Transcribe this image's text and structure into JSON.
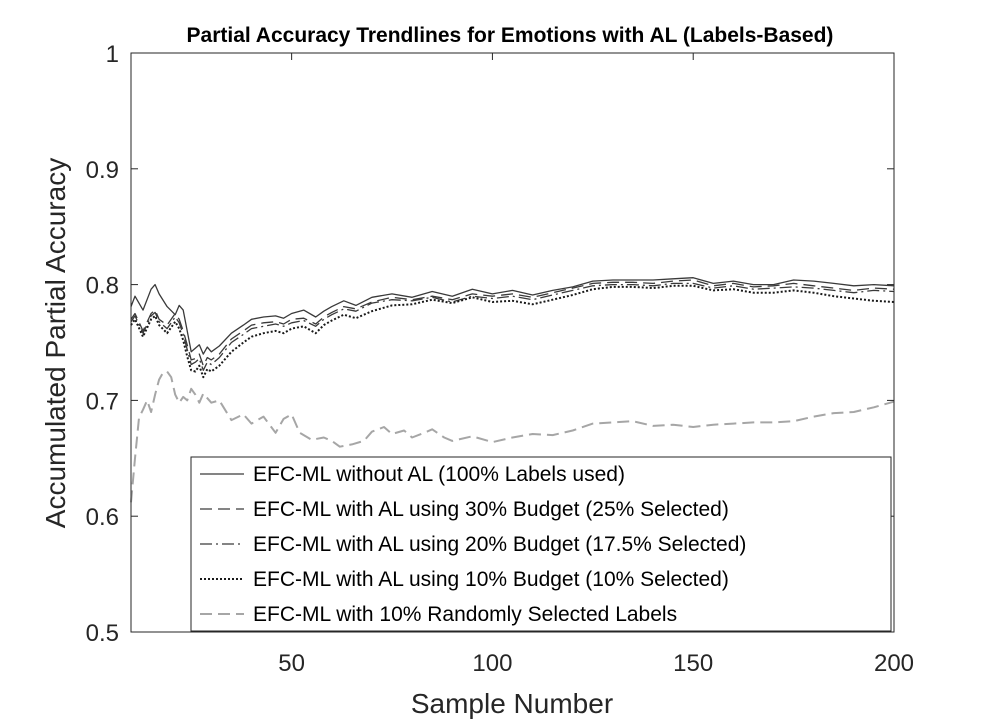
{
  "chart_data": {
    "type": "line",
    "title": "Partial Accuracy Trendlines for Emotions with AL (Labels-Based)",
    "xlabel": "Sample Number",
    "ylabel": "Accumulated Partial Accuracy",
    "xlim": [
      10,
      200
    ],
    "ylim": [
      0.5,
      1
    ],
    "xticks": [
      50,
      100,
      150,
      200
    ],
    "xtick_labels": [
      "50",
      "100",
      "150",
      "200"
    ],
    "yticks": [
      0.5,
      0.6,
      0.7,
      0.8,
      0.9,
      1
    ],
    "ytick_labels": [
      "0.5",
      "0.6",
      "0.7",
      "0.8",
      "0.9",
      "1"
    ],
    "grid": false,
    "legend_position": "bottom-right",
    "series": [
      {
        "name": "EFC-ML without AL (100% Labels used)",
        "line_style": "solid",
        "color": "#3a3a3a",
        "x": [
          10,
          11,
          13,
          15,
          16,
          17,
          19,
          21,
          22,
          23,
          24,
          25,
          26,
          27,
          28,
          29,
          30,
          32,
          35,
          38,
          40,
          43,
          46,
          48,
          50,
          53,
          56,
          58,
          60,
          63,
          66,
          70,
          75,
          80,
          85,
          90,
          95,
          100,
          105,
          110,
          115,
          120,
          125,
          130,
          135,
          140,
          145,
          150,
          155,
          160,
          165,
          170,
          175,
          180,
          185,
          190,
          195,
          200
        ],
        "y": [
          0.781,
          0.79,
          0.778,
          0.796,
          0.8,
          0.792,
          0.781,
          0.774,
          0.782,
          0.778,
          0.76,
          0.742,
          0.745,
          0.748,
          0.74,
          0.746,
          0.742,
          0.747,
          0.758,
          0.765,
          0.77,
          0.772,
          0.773,
          0.771,
          0.775,
          0.778,
          0.772,
          0.777,
          0.781,
          0.786,
          0.782,
          0.789,
          0.792,
          0.789,
          0.794,
          0.79,
          0.796,
          0.792,
          0.795,
          0.791,
          0.795,
          0.798,
          0.803,
          0.804,
          0.804,
          0.804,
          0.805,
          0.806,
          0.801,
          0.803,
          0.8,
          0.8,
          0.804,
          0.803,
          0.801,
          0.799,
          0.8,
          0.799
        ]
      },
      {
        "name": "EFC-ML with AL using 30% Budget (25% Selected)",
        "line_style": "dashed",
        "color": "#3a3a3a",
        "x": [
          10,
          11,
          13,
          15,
          16,
          17,
          19,
          21,
          22,
          23,
          24,
          25,
          26,
          27,
          28,
          29,
          30,
          32,
          35,
          38,
          40,
          43,
          46,
          48,
          50,
          53,
          56,
          58,
          60,
          63,
          66,
          70,
          75,
          80,
          85,
          90,
          95,
          100,
          105,
          110,
          115,
          120,
          125,
          130,
          135,
          140,
          145,
          150,
          155,
          160,
          165,
          170,
          175,
          180,
          185,
          190,
          195,
          200
        ],
        "y": [
          0.77,
          0.775,
          0.76,
          0.775,
          0.778,
          0.77,
          0.765,
          0.775,
          0.77,
          0.76,
          0.748,
          0.735,
          0.736,
          0.74,
          0.73,
          0.737,
          0.735,
          0.74,
          0.753,
          0.76,
          0.765,
          0.767,
          0.768,
          0.766,
          0.77,
          0.771,
          0.766,
          0.772,
          0.776,
          0.781,
          0.779,
          0.785,
          0.789,
          0.787,
          0.79,
          0.787,
          0.792,
          0.79,
          0.792,
          0.789,
          0.793,
          0.797,
          0.801,
          0.802,
          0.802,
          0.801,
          0.803,
          0.804,
          0.799,
          0.801,
          0.798,
          0.799,
          0.801,
          0.799,
          0.797,
          0.795,
          0.797,
          0.796
        ]
      },
      {
        "name": "EFC-ML with AL using 20% Budget (17.5% Selected)",
        "line_style": "dashdot",
        "color": "#3a3a3a",
        "x": [
          10,
          11,
          13,
          15,
          16,
          17,
          19,
          21,
          22,
          23,
          24,
          25,
          26,
          27,
          28,
          29,
          30,
          32,
          35,
          38,
          40,
          43,
          46,
          48,
          50,
          53,
          56,
          58,
          60,
          63,
          66,
          70,
          75,
          80,
          85,
          90,
          95,
          100,
          105,
          110,
          115,
          120,
          125,
          130,
          135,
          140,
          145,
          150,
          155,
          160,
          165,
          170,
          175,
          180,
          185,
          190,
          195,
          200
        ],
        "y": [
          0.768,
          0.773,
          0.758,
          0.773,
          0.776,
          0.768,
          0.762,
          0.772,
          0.767,
          0.757,
          0.744,
          0.731,
          0.733,
          0.736,
          0.726,
          0.733,
          0.731,
          0.737,
          0.75,
          0.757,
          0.762,
          0.764,
          0.766,
          0.764,
          0.767,
          0.769,
          0.764,
          0.77,
          0.774,
          0.779,
          0.777,
          0.784,
          0.787,
          0.786,
          0.789,
          0.785,
          0.79,
          0.788,
          0.79,
          0.787,
          0.791,
          0.795,
          0.799,
          0.8,
          0.8,
          0.799,
          0.801,
          0.801,
          0.797,
          0.799,
          0.796,
          0.797,
          0.798,
          0.797,
          0.795,
          0.793,
          0.795,
          0.794
        ]
      },
      {
        "name": "EFC-ML with AL using 10% Budget (10% Selected)",
        "line_style": "dotted",
        "color": "#1a1a1a",
        "x": [
          10,
          11,
          13,
          15,
          16,
          17,
          19,
          21,
          22,
          23,
          24,
          25,
          26,
          27,
          28,
          29,
          30,
          32,
          35,
          38,
          40,
          43,
          46,
          48,
          50,
          53,
          56,
          58,
          60,
          63,
          66,
          70,
          75,
          80,
          85,
          90,
          95,
          100,
          105,
          110,
          115,
          120,
          125,
          130,
          135,
          140,
          145,
          150,
          155,
          160,
          165,
          170,
          175,
          180,
          185,
          190,
          195,
          200
        ],
        "y": [
          0.765,
          0.77,
          0.755,
          0.77,
          0.773,
          0.765,
          0.758,
          0.768,
          0.762,
          0.752,
          0.738,
          0.726,
          0.725,
          0.73,
          0.72,
          0.727,
          0.725,
          0.73,
          0.742,
          0.75,
          0.755,
          0.758,
          0.76,
          0.758,
          0.762,
          0.764,
          0.758,
          0.765,
          0.769,
          0.774,
          0.771,
          0.777,
          0.782,
          0.783,
          0.787,
          0.784,
          0.789,
          0.785,
          0.786,
          0.783,
          0.787,
          0.791,
          0.796,
          0.798,
          0.798,
          0.797,
          0.799,
          0.799,
          0.795,
          0.796,
          0.793,
          0.793,
          0.795,
          0.793,
          0.79,
          0.788,
          0.786,
          0.785
        ]
      },
      {
        "name": "EFC-ML with 10% Randomly Selected Labels",
        "line_style": "dashed",
        "color": "#a6a6a6",
        "x": [
          10,
          11,
          12,
          13,
          14,
          15,
          16,
          17,
          18,
          19,
          20,
          21,
          22,
          23,
          24,
          25,
          26,
          27,
          28,
          30,
          32,
          35,
          38,
          40,
          43,
          46,
          48,
          50,
          52,
          55,
          58,
          60,
          62,
          65,
          68,
          70,
          73,
          75,
          78,
          80,
          83,
          85,
          88,
          90,
          95,
          100,
          105,
          110,
          115,
          120,
          125,
          130,
          135,
          140,
          145,
          150,
          155,
          160,
          165,
          170,
          175,
          180,
          185,
          190,
          195,
          200
        ],
        "y": [
          0.612,
          0.65,
          0.685,
          0.692,
          0.7,
          0.69,
          0.705,
          0.718,
          0.724,
          0.725,
          0.72,
          0.705,
          0.698,
          0.703,
          0.7,
          0.71,
          0.705,
          0.698,
          0.706,
          0.698,
          0.7,
          0.683,
          0.688,
          0.68,
          0.686,
          0.672,
          0.684,
          0.688,
          0.672,
          0.666,
          0.668,
          0.665,
          0.66,
          0.662,
          0.665,
          0.673,
          0.677,
          0.671,
          0.674,
          0.668,
          0.672,
          0.675,
          0.668,
          0.665,
          0.669,
          0.664,
          0.668,
          0.671,
          0.67,
          0.674,
          0.68,
          0.681,
          0.682,
          0.678,
          0.679,
          0.677,
          0.679,
          0.68,
          0.681,
          0.681,
          0.682,
          0.686,
          0.689,
          0.69,
          0.694,
          0.699
        ]
      }
    ]
  }
}
